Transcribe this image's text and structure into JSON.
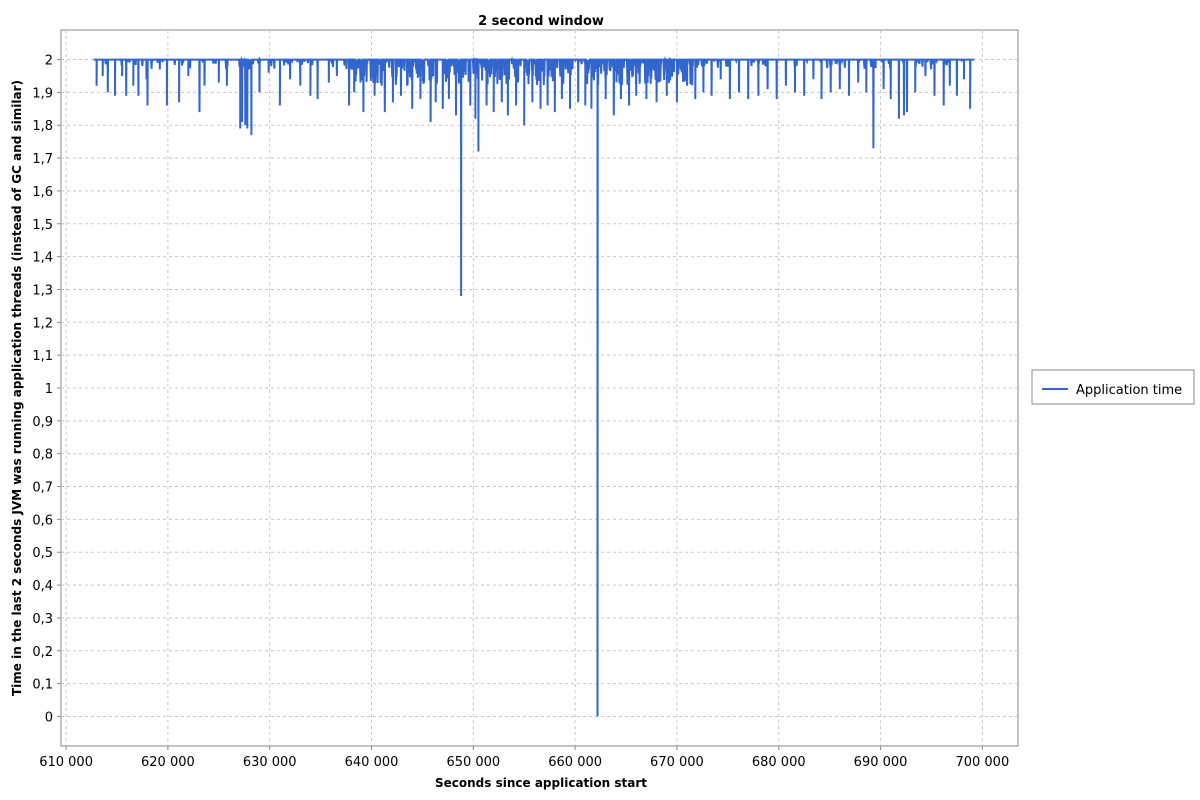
{
  "chart_data": {
    "type": "line",
    "title": "2 second window",
    "xlabel": "Seconds since application start",
    "ylabel": "Time in the last 2 seconds JVM was running application threads (instead of GC and similar)",
    "xlim": [
      609500,
      703500
    ],
    "ylim": [
      -0.09,
      2.09
    ],
    "x_ticks": [
      610000,
      620000,
      630000,
      640000,
      650000,
      660000,
      670000,
      680000,
      690000,
      700000
    ],
    "x_tick_labels": [
      "610 000",
      "620 000",
      "630 000",
      "640 000",
      "650 000",
      "660 000",
      "670 000",
      "680 000",
      "690 000",
      "700 000"
    ],
    "y_ticks": [
      0,
      0.1,
      0.2,
      0.3,
      0.4,
      0.5,
      0.6,
      0.7,
      0.8,
      0.9,
      1,
      1.1,
      1.2,
      1.3,
      1.4,
      1.5,
      1.6,
      1.7,
      1.8,
      1.9,
      2
    ],
    "y_tick_labels": [
      "0",
      "0,1",
      "0,2",
      "0,3",
      "0,4",
      "0,5",
      "0,6",
      "0,7",
      "0,8",
      "0,9",
      "1",
      "1,1",
      "1,2",
      "1,3",
      "1,4",
      "1,5",
      "1,6",
      "1,7",
      "1,8",
      "1,9",
      "2"
    ],
    "grid": true,
    "legend_position": "right",
    "series": [
      {
        "name": "Application time",
        "color": "#3366cc",
        "x_range": [
          612700,
          699200
        ],
        "baseline": 2.0,
        "dips": [
          [
            613000,
            1.92
          ],
          [
            613600,
            1.95
          ],
          [
            614100,
            1.9
          ],
          [
            614800,
            1.89
          ],
          [
            615500,
            1.95
          ],
          [
            615900,
            1.89
          ],
          [
            616600,
            1.92
          ],
          [
            617100,
            1.89
          ],
          [
            617900,
            1.94
          ],
          [
            618000,
            1.86
          ],
          [
            619200,
            1.97
          ],
          [
            619900,
            1.86
          ],
          [
            621100,
            1.87
          ],
          [
            622000,
            1.95
          ],
          [
            623100,
            1.84
          ],
          [
            623600,
            1.92
          ],
          [
            625000,
            1.93
          ],
          [
            625800,
            1.92
          ],
          [
            627100,
            1.79
          ],
          [
            627300,
            1.81
          ],
          [
            627600,
            1.8
          ],
          [
            627800,
            1.79
          ],
          [
            628200,
            1.77
          ],
          [
            629000,
            1.9
          ],
          [
            629900,
            1.96
          ],
          [
            631000,
            1.86
          ],
          [
            632000,
            1.94
          ],
          [
            633000,
            1.92
          ],
          [
            634000,
            1.89
          ],
          [
            634700,
            1.88
          ],
          [
            635800,
            1.93
          ],
          [
            636600,
            1.95
          ],
          [
            637800,
            1.86
          ],
          [
            638300,
            1.9
          ],
          [
            639200,
            1.84
          ],
          [
            640300,
            1.89
          ],
          [
            641000,
            1.92
          ],
          [
            641300,
            1.84
          ],
          [
            642100,
            1.87
          ],
          [
            642900,
            1.89
          ],
          [
            643500,
            1.92
          ],
          [
            644000,
            1.85
          ],
          [
            644800,
            1.88
          ],
          [
            645800,
            1.81
          ],
          [
            646300,
            1.87
          ],
          [
            647000,
            1.85
          ],
          [
            647600,
            1.88
          ],
          [
            648300,
            1.83
          ],
          [
            648800,
            1.28
          ],
          [
            649700,
            1.86
          ],
          [
            650200,
            1.82
          ],
          [
            650500,
            1.72
          ],
          [
            651300,
            1.86
          ],
          [
            652000,
            1.84
          ],
          [
            652800,
            1.87
          ],
          [
            653400,
            1.83
          ],
          [
            654200,
            1.86
          ],
          [
            655000,
            1.8
          ],
          [
            655800,
            1.87
          ],
          [
            656600,
            1.85
          ],
          [
            657300,
            1.86
          ],
          [
            658000,
            1.84
          ],
          [
            658700,
            1.88
          ],
          [
            659500,
            1.85
          ],
          [
            660300,
            1.87
          ],
          [
            661000,
            1.86
          ],
          [
            661600,
            1.85
          ],
          [
            662200,
            0.0
          ],
          [
            663000,
            1.88
          ],
          [
            663800,
            1.83
          ],
          [
            664500,
            1.88
          ],
          [
            665300,
            1.86
          ],
          [
            666000,
            1.89
          ],
          [
            667000,
            1.88
          ],
          [
            668000,
            1.87
          ],
          [
            669000,
            1.89
          ],
          [
            670000,
            1.87
          ],
          [
            671000,
            1.92
          ],
          [
            671800,
            1.88
          ],
          [
            672600,
            1.9
          ],
          [
            673400,
            1.89
          ],
          [
            674300,
            1.94
          ],
          [
            675200,
            1.88
          ],
          [
            676100,
            1.9
          ],
          [
            677000,
            1.88
          ],
          [
            678000,
            1.89
          ],
          [
            678900,
            1.91
          ],
          [
            679800,
            1.88
          ],
          [
            680700,
            1.92
          ],
          [
            681600,
            1.9
          ],
          [
            682500,
            1.89
          ],
          [
            683400,
            1.94
          ],
          [
            684200,
            1.88
          ],
          [
            685100,
            1.9
          ],
          [
            686000,
            1.91
          ],
          [
            686900,
            1.89
          ],
          [
            687800,
            1.93
          ],
          [
            688600,
            1.9
          ],
          [
            689300,
            1.73
          ],
          [
            690300,
            1.91
          ],
          [
            691000,
            1.88
          ],
          [
            691800,
            1.82
          ],
          [
            692300,
            1.83
          ],
          [
            692600,
            1.84
          ],
          [
            693400,
            1.9
          ],
          [
            694400,
            1.95
          ],
          [
            695300,
            1.89
          ],
          [
            696200,
            1.86
          ],
          [
            696800,
            1.92
          ],
          [
            697500,
            1.89
          ],
          [
            698200,
            1.94
          ],
          [
            698800,
            1.85
          ]
        ]
      }
    ]
  }
}
